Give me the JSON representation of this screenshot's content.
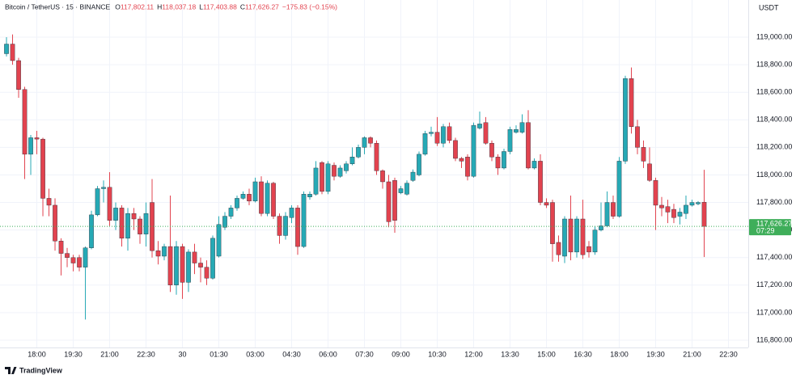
{
  "chart_data": {
    "type": "candlestick",
    "title": "Bitcoin / TetherUS · 15 · BINANCE",
    "ohlc_legend": [
      {
        "key": "O",
        "value": "117,802.11"
      },
      {
        "key": "H",
        "value": "118,037.18"
      },
      {
        "key": "L",
        "value": "117,403.88"
      },
      {
        "key": "C",
        "value": "117,626.27"
      }
    ],
    "change": "−175.83 (−0.15%)",
    "currency": "USDT",
    "brand": "TradingView",
    "up_color": "#26a9b5",
    "down_color": "#e2434f",
    "grid": true,
    "open": [
      118880,
      118950,
      118830,
      118620,
      118150,
      118270,
      118260,
      117830,
      117780,
      117520,
      117430,
      117400,
      117400,
      117330,
      117470,
      117710,
      117900,
      117910,
      117670,
      117760,
      117540,
      117720,
      117680,
      117570,
      117800,
      117450,
      117410,
      117480,
      117200,
      117480,
      117220,
      117440,
      117360,
      117330,
      117250,
      117410,
      117620,
      117700,
      117760,
      117830,
      117860,
      117810,
      117950,
      117720,
      117940,
      117700,
      117560,
      117690,
      117760,
      117480,
      117840,
      117860,
      118090,
      117880,
      118070,
      117990,
      118030,
      118080,
      118130,
      118200,
      118270,
      118230,
      118030,
      117950,
      117960,
      117870,
      117860,
      117960,
      118000,
      118150,
      118300,
      118310,
      118230,
      118350,
      118250,
      118120,
      118130,
      117990,
      118340,
      118380,
      118230,
      118130,
      118050,
      118170,
      118310,
      118310,
      118380,
      118050,
      118100,
      117800,
      117800,
      117510,
      117410,
      117680,
      117440,
      117680,
      117480,
      117440,
      117600,
      117630,
      117800,
      117700,
      118100,
      118700,
      118350,
      118200,
      118080,
      117960,
      117780,
      117770,
      117750,
      117700,
      117720,
      117780,
      117790,
      117802.11
    ],
    "high": [
      119000,
      119020,
      118850,
      118640,
      118290,
      118320,
      118270,
      117900,
      117830,
      117540,
      117470,
      117420,
      117420,
      117480,
      117740,
      117920,
      117960,
      118020,
      117800,
      117780,
      117760,
      117760,
      117700,
      117800,
      117970,
      117520,
      117500,
      117850,
      117520,
      117500,
      117460,
      117500,
      117400,
      117380,
      117560,
      117700,
      117730,
      117780,
      117850,
      117880,
      117900,
      117980,
      117990,
      117960,
      117950,
      117720,
      117730,
      117780,
      117780,
      117880,
      117880,
      118100,
      118100,
      118100,
      118090,
      118070,
      118100,
      118200,
      118220,
      118280,
      118280,
      118250,
      118040,
      118000,
      117980,
      117920,
      117960,
      118040,
      118170,
      118320,
      118350,
      118420,
      118370,
      118380,
      118270,
      118130,
      118150,
      118380,
      118460,
      118420,
      118250,
      118150,
      118190,
      118350,
      118360,
      118440,
      118470,
      118120,
      118150,
      117830,
      117820,
      117560,
      117700,
      117850,
      117700,
      117820,
      117520,
      117630,
      117800,
      117880,
      117850,
      118130,
      118720,
      118780,
      118400,
      118250,
      118200,
      117980,
      117840,
      117820,
      117790,
      117760,
      117850,
      117820,
      117810,
      118037.18
    ],
    "low": [
      118860,
      118800,
      118560,
      117970,
      118000,
      118150,
      117700,
      117700,
      117450,
      117270,
      117330,
      117300,
      117300,
      116950,
      117460,
      117700,
      117800,
      117630,
      117600,
      117480,
      117450,
      117600,
      117500,
      117480,
      117400,
      117350,
      117380,
      117150,
      117130,
      117100,
      117150,
      117280,
      117220,
      117200,
      117240,
      117400,
      117600,
      117680,
      117740,
      117820,
      117780,
      117800,
      117700,
      117700,
      117680,
      117500,
      117530,
      117650,
      117420,
      117470,
      117820,
      117850,
      117860,
      117860,
      117960,
      117980,
      118010,
      118070,
      118120,
      118150,
      118200,
      118000,
      117900,
      117620,
      117580,
      117860,
      117850,
      117950,
      117990,
      118140,
      118280,
      118210,
      118200,
      118230,
      118100,
      118050,
      117960,
      117980,
      118330,
      118220,
      118100,
      118000,
      118040,
      118150,
      118300,
      118300,
      118040,
      118040,
      117780,
      117760,
      117370,
      117370,
      117360,
      117380,
      117400,
      117390,
      117400,
      117420,
      117590,
      117620,
      117680,
      117690,
      118080,
      118300,
      118150,
      118050,
      117950,
      117600,
      117700,
      117650,
      117650,
      117640,
      117680,
      117770,
      117780,
      117403.88
    ],
    "close": [
      118950,
      118830,
      118620,
      118150,
      118270,
      118260,
      117830,
      117780,
      117520,
      117430,
      117400,
      117360,
      117330,
      117470,
      117710,
      117900,
      117910,
      117670,
      117760,
      117540,
      117720,
      117680,
      117570,
      117720,
      117450,
      117410,
      117480,
      117200,
      117480,
      117220,
      117440,
      117360,
      117330,
      117250,
      117540,
      117640,
      117700,
      117760,
      117830,
      117860,
      117810,
      117950,
      117720,
      117940,
      117700,
      117560,
      117700,
      117760,
      117480,
      117860,
      117860,
      118050,
      117880,
      118080,
      117990,
      118050,
      118080,
      118130,
      118200,
      118270,
      118230,
      118030,
      117950,
      117660,
      117670,
      117900,
      117940,
      118020,
      118150,
      118300,
      118310,
      118230,
      118350,
      118250,
      118120,
      118100,
      117990,
      118360,
      118370,
      118230,
      118130,
      118050,
      118170,
      118330,
      118330,
      118380,
      118050,
      118100,
      117800,
      117780,
      117500,
      117420,
      117680,
      117440,
      117680,
      117420,
      117440,
      117600,
      117630,
      117800,
      117700,
      118100,
      118700,
      118350,
      118200,
      118100,
      117960,
      117780,
      117760,
      117730,
      117690,
      117730,
      117780,
      117800,
      117800,
      117626.27
    ],
    "xlim": [
      -1.07,
      122.27
    ],
    "xticks": [
      {
        "value": 5,
        "label": "18:00"
      },
      {
        "value": 11,
        "label": "19:30"
      },
      {
        "value": 17,
        "label": "21:00"
      },
      {
        "value": 23,
        "label": "22:30"
      },
      {
        "value": 29,
        "label": "30"
      },
      {
        "value": 35,
        "label": "01:30"
      },
      {
        "value": 41,
        "label": "03:00"
      },
      {
        "value": 47,
        "label": "04:30"
      },
      {
        "value": 53,
        "label": "06:00"
      },
      {
        "value": 59,
        "label": "07:30"
      },
      {
        "value": 65,
        "label": "09:00"
      },
      {
        "value": 71,
        "label": "10:30"
      },
      {
        "value": 77,
        "label": "12:00"
      },
      {
        "value": 83,
        "label": "13:30"
      },
      {
        "value": 89,
        "label": "15:00"
      },
      {
        "value": 95,
        "label": "16:30"
      },
      {
        "value": 101,
        "label": "18:00"
      },
      {
        "value": 107,
        "label": "19:30"
      },
      {
        "value": 113,
        "label": "21:00"
      },
      {
        "value": 119,
        "label": "22:30"
      }
    ],
    "ylim": [
      116747,
      119270
    ],
    "yticks": [
      {
        "value": 116800,
        "label": "116,800.00"
      },
      {
        "value": 117000,
        "label": "117,000.00"
      },
      {
        "value": 117200,
        "label": "117,200.00"
      },
      {
        "value": 117400,
        "label": "117,400.00"
      },
      {
        "value": 117600,
        "label": "117,600.00"
      },
      {
        "value": 117800,
        "label": "117,800.00"
      },
      {
        "value": 118000,
        "label": "118,000.00"
      },
      {
        "value": 118200,
        "label": "118,200.00"
      },
      {
        "value": 118400,
        "label": "118,400.00"
      },
      {
        "value": 118600,
        "label": "118,600.00"
      },
      {
        "value": 118800,
        "label": "118,800.00"
      },
      {
        "value": 119000,
        "label": "119,000.00"
      }
    ],
    "last_price": {
      "value": 117626.27,
      "label": "117,626.27"
    },
    "last_price_color": "#3fae5a",
    "countdown": "07:29"
  }
}
